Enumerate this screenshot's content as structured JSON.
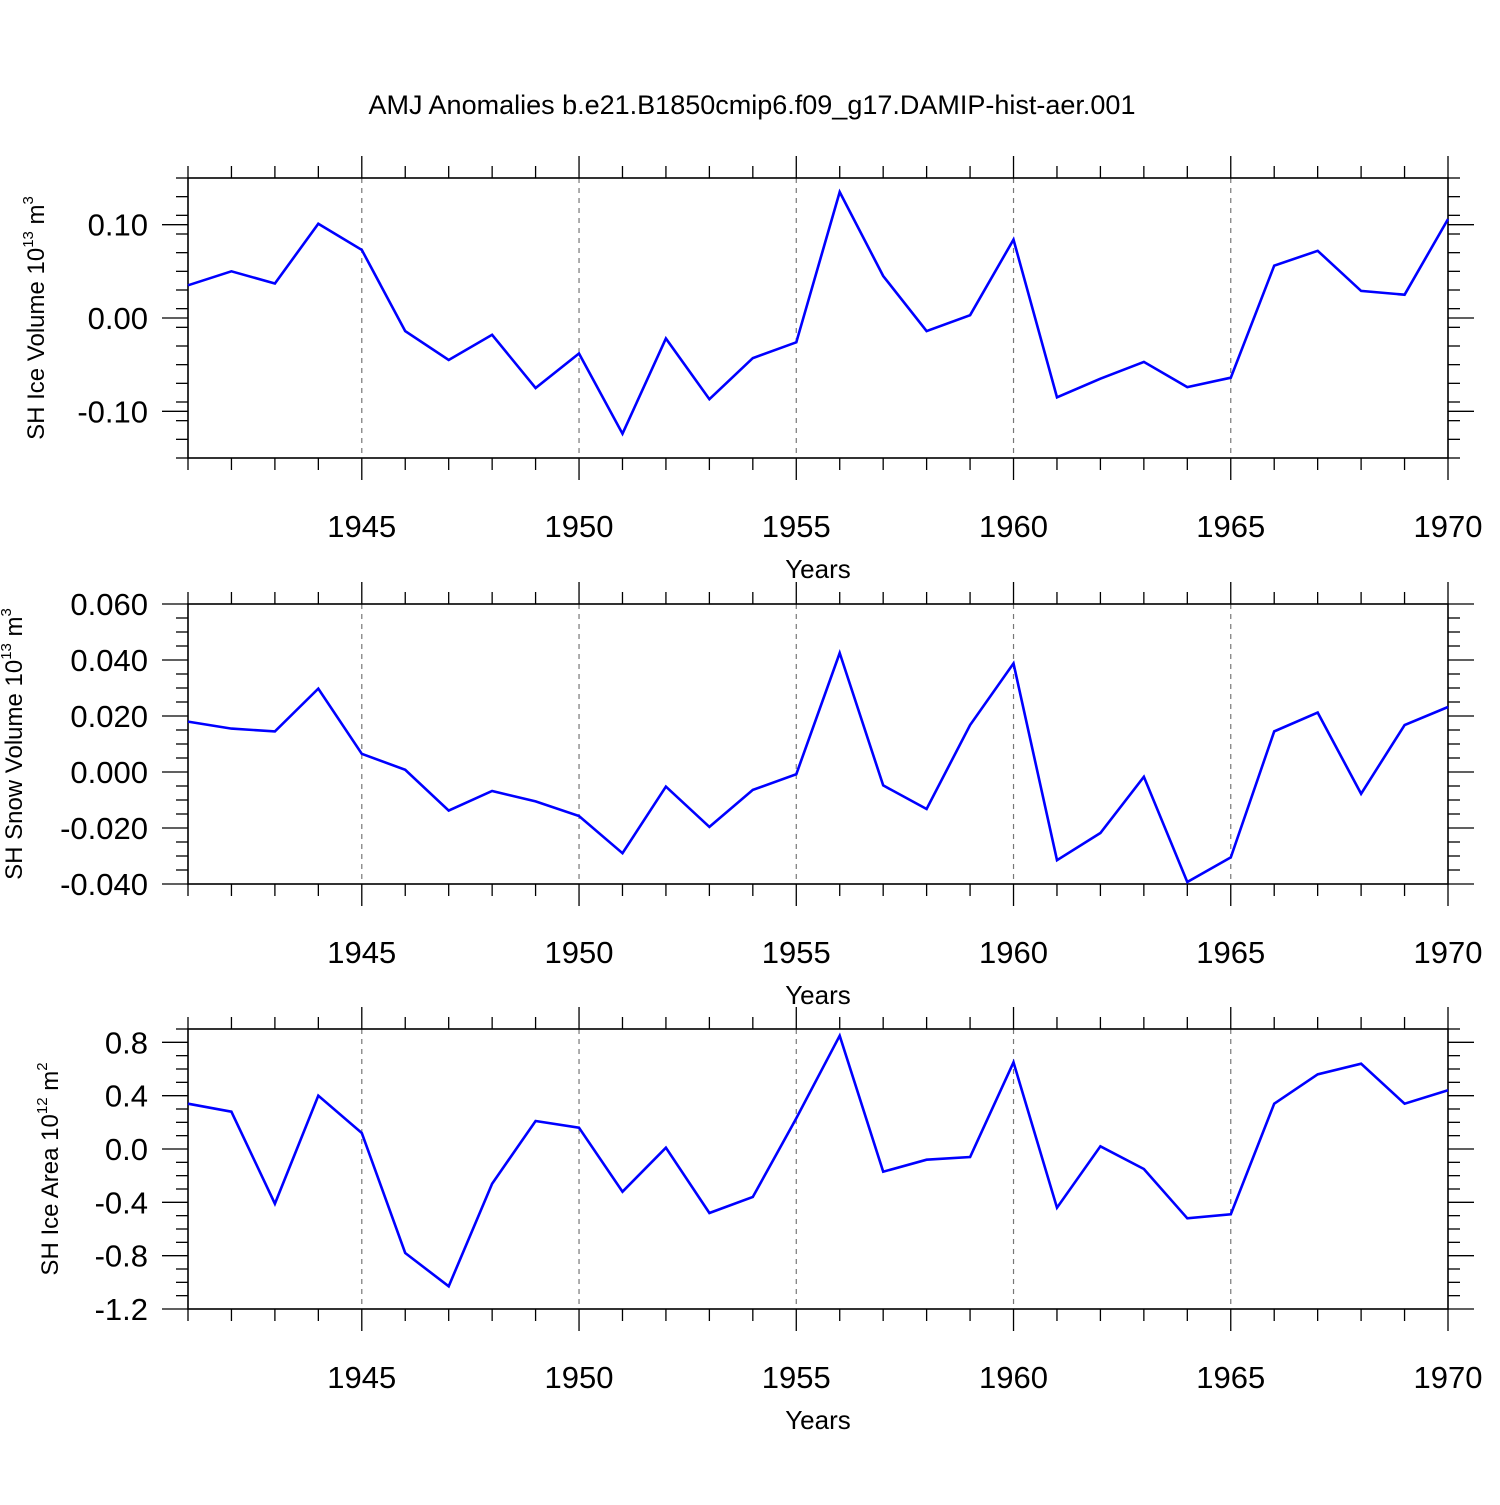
{
  "title": "AMJ Anomalies b.e21.B1850cmip6.f09_g17.DAMIP-hist-aer.001",
  "colors": {
    "series": "#0000ff",
    "frame": "#000000",
    "grid": "#777777"
  },
  "chart_data": [
    {
      "type": "line",
      "name": "sh-ice-volume",
      "title": "AMJ Anomalies b.e21.B1850cmip6.f09_g17.DAMIP-hist-aer.001",
      "ylabel": {
        "text": "SH Ice Volume 10",
        "sup1": "13",
        "mid": " m",
        "sup2": "3"
      },
      "xlabel": "Years",
      "xlim": [
        1941,
        1970
      ],
      "ylim": [
        -0.15,
        0.15
      ],
      "yticks": [
        -0.1,
        0.0,
        0.1
      ],
      "ytick_labels": [
        "-0.10",
        "0.00",
        "0.10"
      ],
      "yminor_step": 0.02,
      "xticks": [
        1945,
        1950,
        1955,
        1960,
        1965,
        1970
      ],
      "xtick_labels": [
        "1945",
        "1950",
        "1955",
        "1960",
        "1965",
        "1970"
      ],
      "grid": "vertical dashed at major x ticks",
      "x": [
        1941,
        1942,
        1943,
        1944,
        1945,
        1946,
        1947,
        1948,
        1949,
        1950,
        1951,
        1952,
        1953,
        1954,
        1955,
        1956,
        1957,
        1958,
        1959,
        1960,
        1961,
        1962,
        1963,
        1964,
        1965,
        1966,
        1967,
        1968,
        1969,
        1970
      ],
      "values": [
        0.035,
        0.05,
        0.037,
        0.101,
        0.073,
        -0.014,
        -0.045,
        -0.018,
        -0.075,
        -0.038,
        -0.124,
        -0.022,
        -0.087,
        -0.043,
        -0.026,
        0.135,
        0.045,
        -0.014,
        0.003,
        0.084,
        -0.085,
        -0.065,
        -0.047,
        -0.074,
        -0.064,
        0.056,
        0.072,
        0.029,
        0.025,
        0.106
      ]
    },
    {
      "type": "line",
      "name": "sh-snow-volume",
      "ylabel": {
        "text": "SH Snow Volume 10",
        "sup1": "13",
        "mid": " m",
        "sup2": "3"
      },
      "xlabel": "Years",
      "xlim": [
        1941,
        1970
      ],
      "ylim": [
        -0.04,
        0.06
      ],
      "yticks": [
        -0.04,
        -0.02,
        0.0,
        0.02,
        0.04,
        0.06
      ],
      "ytick_labels": [
        "-0.040",
        "-0.020",
        "0.000",
        "0.020",
        "0.040",
        "0.060"
      ],
      "yminor_step": 0.005,
      "xticks": [
        1945,
        1950,
        1955,
        1960,
        1965,
        1970
      ],
      "xtick_labels": [
        "1945",
        "1950",
        "1955",
        "1960",
        "1965",
        "1970"
      ],
      "grid": "vertical dashed at major x ticks",
      "x": [
        1941,
        1942,
        1943,
        1944,
        1945,
        1946,
        1947,
        1948,
        1949,
        1950,
        1951,
        1952,
        1953,
        1954,
        1955,
        1956,
        1957,
        1958,
        1959,
        1960,
        1961,
        1962,
        1963,
        1964,
        1965,
        1966,
        1967,
        1968,
        1969,
        1970
      ],
      "values": [
        0.018,
        0.0155,
        0.0145,
        0.0298,
        0.0065,
        0.0008,
        -0.0138,
        -0.0068,
        -0.0105,
        -0.0157,
        -0.029,
        -0.0052,
        -0.0196,
        -0.0064,
        -0.0008,
        0.0425,
        -0.0048,
        -0.0132,
        0.0168,
        0.0388,
        -0.0315,
        -0.0218,
        -0.0017,
        -0.0393,
        -0.0305,
        0.0145,
        0.0212,
        -0.0078,
        0.0168,
        0.0232
      ]
    },
    {
      "type": "line",
      "name": "sh-ice-area",
      "ylabel": {
        "text": "SH Ice Area 10",
        "sup1": "12",
        "mid": " m",
        "sup2": "2"
      },
      "xlabel": "Years",
      "xlim": [
        1941,
        1970
      ],
      "ylim": [
        -1.2,
        0.9
      ],
      "yticks": [
        -1.2,
        -0.8,
        -0.4,
        0.0,
        0.4,
        0.8
      ],
      "ytick_labels": [
        "-1.2",
        "-0.8",
        "-0.4",
        "0.0",
        "0.4",
        "0.8"
      ],
      "yminor_step": 0.1,
      "xticks": [
        1945,
        1950,
        1955,
        1960,
        1965,
        1970
      ],
      "xtick_labels": [
        "1945",
        "1950",
        "1955",
        "1960",
        "1965",
        "1970"
      ],
      "grid": "vertical dashed at major x ticks",
      "x": [
        1941,
        1942,
        1943,
        1944,
        1945,
        1946,
        1947,
        1948,
        1949,
        1950,
        1951,
        1952,
        1953,
        1954,
        1955,
        1956,
        1957,
        1958,
        1959,
        1960,
        1961,
        1962,
        1963,
        1964,
        1965,
        1966,
        1967,
        1968,
        1969,
        1970
      ],
      "values": [
        0.34,
        0.28,
        -0.41,
        0.4,
        0.12,
        -0.78,
        -1.03,
        -0.26,
        0.21,
        0.16,
        -0.32,
        0.01,
        -0.48,
        -0.36,
        0.23,
        0.85,
        -0.17,
        -0.08,
        -0.06,
        0.65,
        -0.44,
        0.02,
        -0.15,
        -0.52,
        -0.49,
        0.34,
        0.56,
        0.64,
        0.34,
        0.44
      ]
    }
  ]
}
